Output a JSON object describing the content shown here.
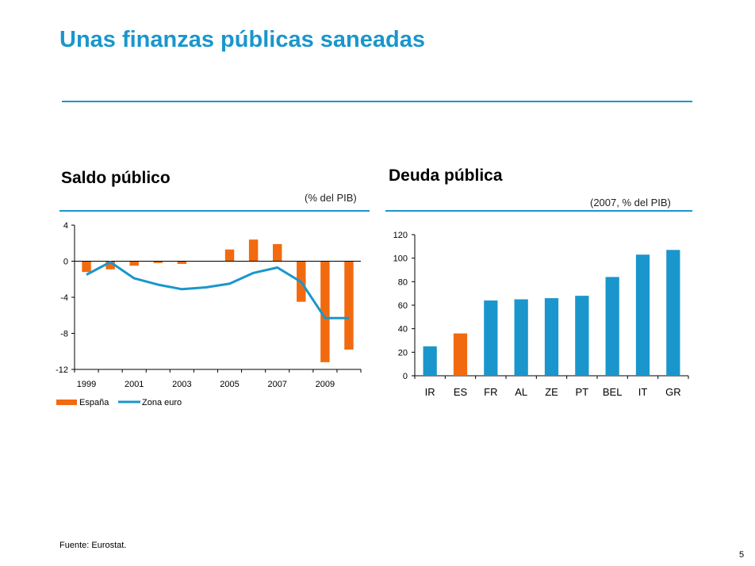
{
  "slide": {
    "title": "Unas finanzas públicas saneadas",
    "footer": "Fuente: Eurostat.",
    "page_number": "5"
  },
  "colors": {
    "accent": "#1a96cc",
    "espana": "#f26a10",
    "zona_euro": "#1a96cc",
    "ireland_bar": "#1a96cc",
    "spain_bar": "#f26a10"
  },
  "chart_data": [
    {
      "type": "bar+line",
      "title": "Saldo público",
      "unit": "(% del PIB)",
      "x": [
        1999,
        2000,
        2001,
        2002,
        2003,
        2004,
        2005,
        2006,
        2007,
        2008,
        2009,
        2010
      ],
      "xticks": [
        "1999",
        "2001",
        "2003",
        "2005",
        "2007",
        "2009"
      ],
      "ylim": [
        -12,
        4
      ],
      "yticks": [
        "4",
        "0",
        "-4",
        "-8",
        "-12"
      ],
      "series": [
        {
          "name": "España",
          "kind": "bar",
          "values": [
            -1.2,
            -0.9,
            -0.5,
            -0.2,
            -0.3,
            0,
            1.3,
            2.4,
            1.9,
            -4.5,
            -11.2,
            -9.8
          ]
        },
        {
          "name": "Zona euro",
          "kind": "line",
          "values": [
            -1.5,
            -0.1,
            -1.9,
            -2.6,
            -3.1,
            -2.9,
            -2.5,
            -1.3,
            -0.7,
            -2.3,
            -6.3,
            -6.3
          ]
        }
      ],
      "legend": "bottom"
    },
    {
      "type": "bar",
      "title": "Deuda pública",
      "unit": "(2007, % del PIB)",
      "categories": [
        "IR",
        "ES",
        "FR",
        "AL",
        "ZE",
        "PT",
        "BEL",
        "IT",
        "GR"
      ],
      "values": [
        25,
        36,
        64,
        65,
        66,
        68,
        84,
        103,
        107
      ],
      "highlight": "ES",
      "ylim": [
        0,
        120
      ],
      "yticks": [
        "120",
        "100",
        "80",
        "60",
        "40",
        "20",
        "0"
      ]
    }
  ]
}
